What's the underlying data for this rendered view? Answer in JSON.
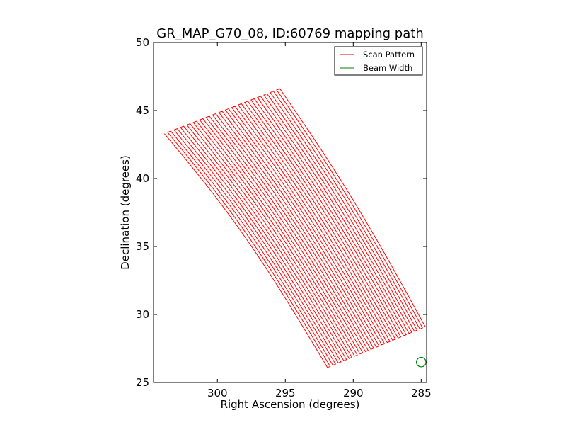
{
  "chart_data": {
    "type": "line",
    "title": "GR_MAP_G70_08, ID:60769 mapping path",
    "xlabel": "Right Ascension (degrees)",
    "ylabel": "Declination (degrees)",
    "xlim": [
      304.7,
      284.6
    ],
    "ylim": [
      25,
      50
    ],
    "x_reversed": true,
    "xticks": [
      300,
      295,
      290,
      285
    ],
    "yticks": [
      25,
      30,
      35,
      40,
      45,
      50
    ],
    "legend_position": "upper right",
    "grid": false,
    "series": [
      {
        "name": "Scan Pattern",
        "color": "#ff0000",
        "style": "boustrophedon scan legs",
        "leg_count": 37,
        "first_leg_top": [
          303.9,
          43.3
        ],
        "first_leg_bottom": [
          291.9,
          26.1
        ],
        "last_leg_top": [
          295.4,
          46.6
        ],
        "last_leg_bottom": [
          284.7,
          29.1
        ]
      },
      {
        "name": "Beam Width",
        "color": "#008000",
        "style": "circle",
        "center": [
          285.0,
          26.5
        ],
        "radius_deg": 0.35
      }
    ]
  }
}
